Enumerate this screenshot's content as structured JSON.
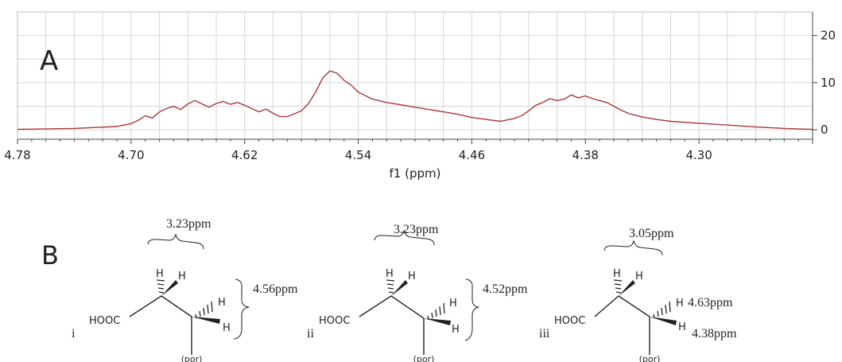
{
  "panel_a": {
    "label": "A",
    "xlabel": "f1 (ppm)",
    "x_ticks": [
      "4.78",
      "4.70",
      "4.62",
      "4.54",
      "4.46",
      "4.38",
      "4.30"
    ],
    "y_ticks": [
      "20",
      "10",
      "0"
    ]
  },
  "chart_data": {
    "type": "line",
    "title": "",
    "xlabel": "f1 (ppm)",
    "ylabel": "",
    "xlim": [
      4.78,
      4.22
    ],
    "ylim": [
      -2,
      25
    ],
    "x_reversed": true,
    "grid": true,
    "series": [
      {
        "color": "#a83838",
        "x": [
          4.78,
          4.74,
          4.71,
          4.705,
          4.7,
          4.695,
          4.69,
          4.685,
          4.68,
          4.675,
          4.67,
          4.665,
          4.66,
          4.655,
          4.65,
          4.645,
          4.64,
          4.635,
          4.63,
          4.625,
          4.62,
          4.615,
          4.61,
          4.605,
          4.6,
          4.595,
          4.59,
          4.585,
          4.58,
          4.575,
          4.57,
          4.565,
          4.56,
          4.555,
          4.55,
          4.545,
          4.54,
          4.53,
          4.52,
          4.51,
          4.5,
          4.49,
          4.48,
          4.47,
          4.46,
          4.45,
          4.44,
          4.435,
          4.43,
          4.425,
          4.42,
          4.415,
          4.41,
          4.405,
          4.4,
          4.395,
          4.39,
          4.385,
          4.38,
          4.375,
          4.37,
          4.365,
          4.36,
          4.355,
          4.35,
          4.34,
          4.33,
          4.32,
          4.3,
          4.28,
          4.26,
          4.24,
          4.22
        ],
        "values": [
          0.1,
          0.3,
          0.7,
          1.0,
          1.3,
          2.0,
          3.0,
          2.5,
          3.8,
          4.5,
          5.0,
          4.3,
          5.5,
          6.2,
          5.5,
          4.8,
          5.6,
          6.0,
          5.4,
          5.8,
          5.2,
          4.5,
          3.8,
          4.4,
          3.5,
          2.8,
          2.8,
          3.4,
          4.0,
          5.6,
          8.0,
          11.0,
          12.5,
          12.0,
          10.5,
          9.5,
          8.0,
          6.5,
          5.8,
          5.3,
          4.8,
          4.3,
          3.8,
          3.3,
          2.6,
          2.2,
          1.8,
          2.1,
          2.4,
          3.0,
          4.0,
          5.2,
          5.8,
          6.6,
          6.2,
          6.5,
          7.4,
          6.8,
          7.2,
          6.6,
          6.2,
          5.8,
          5.0,
          4.2,
          3.5,
          2.7,
          2.2,
          1.8,
          1.4,
          1.0,
          0.6,
          0.3,
          0.1
        ]
      }
    ]
  },
  "panel_b": {
    "label": "B",
    "structures": [
      {
        "roman": "i",
        "acid_group": "HOOC",
        "anchor": "(por)",
        "top_shift": "3.23ppm",
        "side_shift": "4.56ppm",
        "h_upper": [
          "H",
          "H"
        ],
        "h_lower": [
          "H",
          "H"
        ]
      },
      {
        "roman": "ii",
        "acid_group": "HOOC",
        "anchor": "(por)",
        "top_shift": "3.23ppm",
        "side_shift": "4.52ppm",
        "h_upper": [
          "H",
          "H"
        ],
        "h_lower": [
          "H",
          "H"
        ]
      },
      {
        "roman": "iii",
        "acid_group": "HOOC",
        "anchor": "(por)",
        "top_shift": "3.05ppm",
        "h_upper": [
          "H",
          "H"
        ],
        "h_lower": [
          "H",
          "H"
        ],
        "h_lower_shifts": [
          "4.63ppm",
          "4.38ppm"
        ]
      }
    ]
  }
}
